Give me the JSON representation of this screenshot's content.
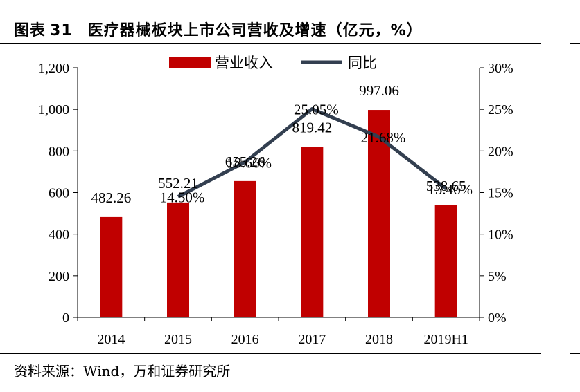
{
  "title": {
    "label": "图表",
    "number": "31",
    "text": "医疗器械板块上市公司营收及增速（亿元，%）"
  },
  "source": "资料来源：Wind，万和证券研究所",
  "chart_data": {
    "type": "bar",
    "categories": [
      "2014",
      "2015",
      "2016",
      "2017",
      "2018",
      "2019H1"
    ],
    "series": [
      {
        "name": "营业收入",
        "kind": "bar",
        "axis": "left",
        "color": "#c00000",
        "values": [
          482.26,
          552.21,
          655.26,
          819.42,
          997.06,
          538.65
        ],
        "labels": [
          "482.26",
          "552.21",
          "655.26",
          "819.42",
          "997.06",
          "538.65"
        ]
      },
      {
        "name": "同比",
        "kind": "line",
        "axis": "right",
        "color": "#333f50",
        "values": [
          null,
          14.5,
          18.66,
          25.05,
          21.68,
          15.46
        ],
        "labels": [
          "",
          "14.50%",
          "18.66%",
          "25.05%",
          "21.68%",
          "15.46%"
        ]
      }
    ],
    "y_left": {
      "ylim": [
        0,
        1200
      ],
      "ticks": [
        "0",
        "200",
        "400",
        "600",
        "800",
        "1,000",
        "1,200"
      ]
    },
    "y_right": {
      "ylim": [
        0,
        30
      ],
      "ticks": [
        "0%",
        "5%",
        "10%",
        "15%",
        "20%",
        "25%",
        "30%"
      ]
    },
    "legend": "top-center",
    "grid": false
  }
}
